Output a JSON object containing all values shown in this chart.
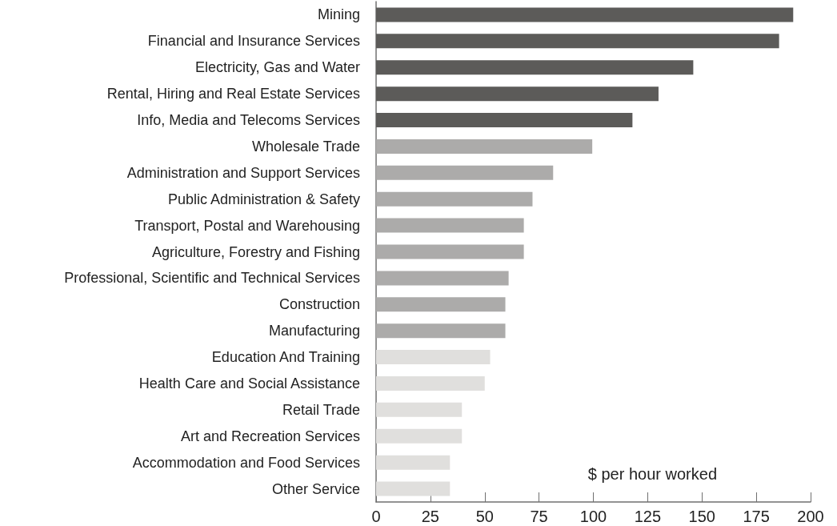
{
  "chart_data": {
    "type": "bar",
    "orientation": "horizontal",
    "xlabel": "$ per hour worked",
    "categories": [
      "Mining",
      "Financial and Insurance Services",
      "Electricity, Gas and Water",
      "Rental, Hiring and Real Estate Services",
      "Info, Media and Telecoms Services",
      "Wholesale Trade",
      "Administration and Support Services",
      "Public Administration & Safety",
      "Transport, Postal and Warehousing",
      "Agriculture, Forestry and Fishing",
      "Professional, Scientific and Technical Services",
      "Construction",
      "Manufacturing",
      "Education And Training",
      "Health Care and Social Assistance",
      "Retail Trade",
      "Art and Recreation Services",
      "Accommodation and Food Services",
      "Other Service"
    ],
    "values": [
      192,
      185.5,
      146,
      130,
      118,
      99.5,
      81.5,
      72,
      68,
      68,
      61,
      59.5,
      59.5,
      52.5,
      50,
      39.5,
      39.5,
      34,
      34
    ],
    "colors": [
      "#5c5b59",
      "#5c5b59",
      "#5c5b59",
      "#5c5b59",
      "#5c5b59",
      "#acabaa",
      "#acabaa",
      "#acabaa",
      "#acabaa",
      "#acabaa",
      "#acabaa",
      "#acabaa",
      "#acabaa",
      "#e0dfdd",
      "#e0dfdd",
      "#e0dfdd",
      "#e0dfdd",
      "#e0dfdd",
      "#e0dfdd"
    ],
    "xlim": [
      0,
      200
    ],
    "xticks": [
      0,
      25,
      50,
      75,
      100,
      125,
      150,
      175,
      200
    ],
    "grid": false
  }
}
